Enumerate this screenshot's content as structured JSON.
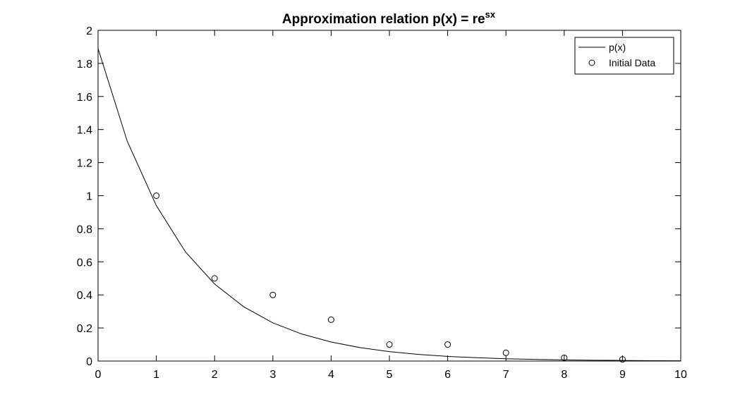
{
  "chart_data": {
    "type": "line",
    "title": "Approximation relation p(x) = re",
    "title_superscript": "sx",
    "xlabel": "",
    "ylabel": "",
    "xlim": [
      0,
      10
    ],
    "ylim": [
      0,
      2
    ],
    "x_ticks": [
      0,
      1,
      2,
      3,
      4,
      5,
      6,
      7,
      8,
      9,
      10
    ],
    "y_ticks": [
      0,
      0.2,
      0.4,
      0.6,
      0.8,
      1,
      1.2,
      1.4,
      1.6,
      1.8,
      2
    ],
    "x_tick_labels": [
      "0",
      "1",
      "2",
      "3",
      "4",
      "5",
      "6",
      "7",
      "8",
      "9",
      "10"
    ],
    "y_tick_labels": [
      "0",
      "0.2",
      "0.4",
      "0.6",
      "0.8",
      "1",
      "1.2",
      "1.4",
      "1.6",
      "1.8",
      "2"
    ],
    "grid": false,
    "box": true,
    "legend": {
      "position": "top-right",
      "entries": [
        "p(x)",
        "Initial Data"
      ]
    },
    "series": [
      {
        "name": "p(x)",
        "style": "line",
        "color": "#000000",
        "x": [
          0,
          0.5,
          1,
          1.5,
          2,
          2.5,
          3,
          3.5,
          4,
          4.5,
          5,
          5.5,
          6,
          6.5,
          7,
          7.5,
          8,
          8.5,
          9,
          9.5,
          10
        ],
        "y": [
          1.89,
          1.33,
          0.94,
          0.66,
          0.466,
          0.328,
          0.231,
          0.163,
          0.115,
          0.081,
          0.057,
          0.04,
          0.028,
          0.02,
          0.014,
          0.01,
          0.007,
          0.0049,
          0.0035,
          0.0024,
          0.0017
        ]
      },
      {
        "name": "Initial Data",
        "style": "marker-circle",
        "color": "#000000",
        "x": [
          1,
          2,
          3,
          4,
          5,
          6,
          7,
          8,
          9
        ],
        "y": [
          1.0,
          0.5,
          0.4,
          0.25,
          0.1,
          0.1,
          0.05,
          0.02,
          0.01
        ]
      }
    ]
  }
}
